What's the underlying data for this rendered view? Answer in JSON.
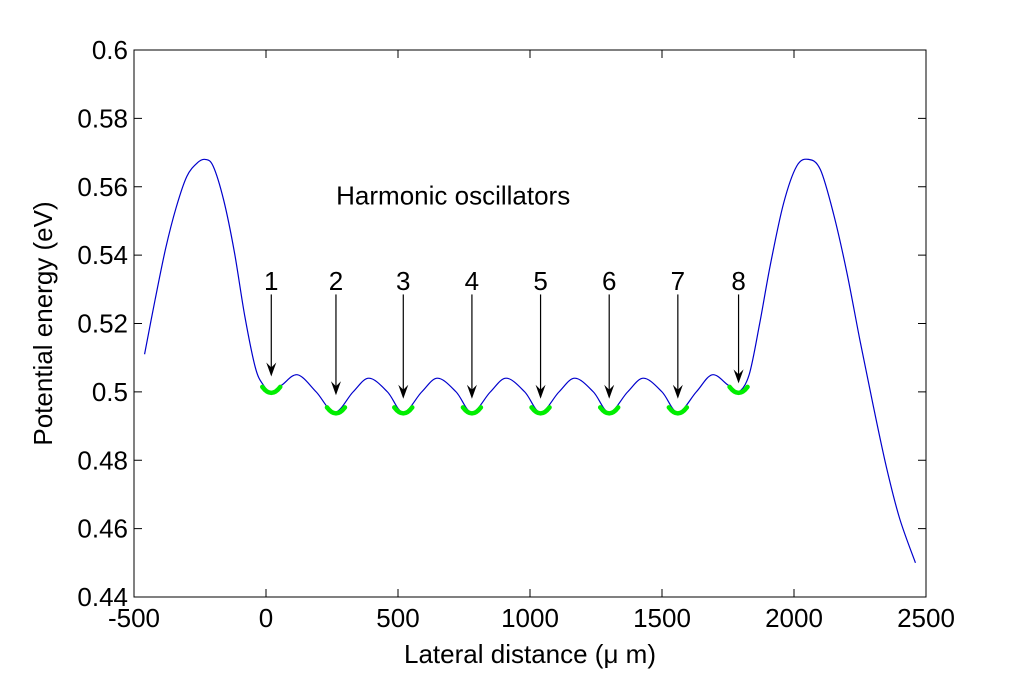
{
  "chart_data": {
    "type": "line",
    "title": "",
    "xlabel": "Lateral distance (μ m)",
    "ylabel": "Potential energy (eV)",
    "xlim": [
      -500,
      2500
    ],
    "ylim": [
      0.44,
      0.6
    ],
    "xticks": [
      -500,
      0,
      500,
      1000,
      1500,
      2000,
      2500
    ],
    "yticks": [
      0.44,
      0.46,
      0.48,
      0.5,
      0.52,
      0.54,
      0.56,
      0.58,
      0.6
    ],
    "xtick_labels": [
      "-500",
      "0",
      "500",
      "1000",
      "1500",
      "2000",
      "2500"
    ],
    "ytick_labels": [
      "0.44",
      "0.46",
      "0.48",
      "0.5",
      "0.52",
      "0.54",
      "0.56",
      "0.58",
      "0.6"
    ],
    "grid": false,
    "series": [
      {
        "color": "#0000cc",
        "x": [
          -460,
          -420,
          -380,
          -340,
          -300,
          -260,
          -230,
          -200,
          -160,
          -120,
          -80,
          -40,
          -10,
          20,
          60,
          120,
          190,
          260,
          330,
          390,
          460,
          520,
          590,
          650,
          720,
          780,
          850,
          910,
          980,
          1040,
          1110,
          1170,
          1240,
          1300,
          1370,
          1430,
          1500,
          1560,
          1630,
          1690,
          1750,
          1790,
          1830,
          1870,
          1910,
          1960,
          2010,
          2055,
          2100,
          2150,
          2200,
          2250,
          2300,
          2350,
          2400,
          2460
        ],
        "y": [
          0.511,
          0.527,
          0.542,
          0.554,
          0.563,
          0.567,
          0.568,
          0.566,
          0.556,
          0.541,
          0.522,
          0.507,
          0.502,
          0.5,
          0.502,
          0.505,
          0.5,
          0.494,
          0.5,
          0.504,
          0.5,
          0.494,
          0.5,
          0.504,
          0.5,
          0.494,
          0.5,
          0.504,
          0.5,
          0.494,
          0.5,
          0.504,
          0.5,
          0.494,
          0.5,
          0.504,
          0.5,
          0.494,
          0.5,
          0.505,
          0.502,
          0.5,
          0.505,
          0.52,
          0.537,
          0.555,
          0.566,
          0.568,
          0.565,
          0.552,
          0.535,
          0.515,
          0.496,
          0.478,
          0.463,
          0.45
        ]
      }
    ],
    "highlights": {
      "color": "#00ee00",
      "minima_x": [
        20,
        265,
        520,
        780,
        1040,
        1300,
        1560,
        1790
      ],
      "minima_y": [
        0.5,
        0.494,
        0.494,
        0.494,
        0.494,
        0.494,
        0.494,
        0.5
      ]
    },
    "annotations": {
      "title_text": "Harmonic oscillators",
      "title_x": 1300,
      "title_y": 0.5575,
      "arrows": [
        {
          "label": "1",
          "x": 20,
          "y_label": 0.5325,
          "y_start": 0.5285,
          "y_end": 0.5045
        },
        {
          "label": "2",
          "x": 265,
          "y_label": 0.5325,
          "y_start": 0.5285,
          "y_end": 0.499
        },
        {
          "label": "3",
          "x": 520,
          "y_label": 0.5325,
          "y_start": 0.5285,
          "y_end": 0.498
        },
        {
          "label": "4",
          "x": 780,
          "y_label": 0.5325,
          "y_start": 0.5285,
          "y_end": 0.498
        },
        {
          "label": "5",
          "x": 1040,
          "y_label": 0.5325,
          "y_start": 0.5285,
          "y_end": 0.498
        },
        {
          "label": "6",
          "x": 1300,
          "y_label": 0.5325,
          "y_start": 0.5285,
          "y_end": 0.498
        },
        {
          "label": "7",
          "x": 1560,
          "y_label": 0.5325,
          "y_start": 0.5285,
          "y_end": 0.498
        },
        {
          "label": "8",
          "x": 1790,
          "y_label": 0.5325,
          "y_start": 0.5285,
          "y_end": 0.5025
        }
      ]
    }
  }
}
